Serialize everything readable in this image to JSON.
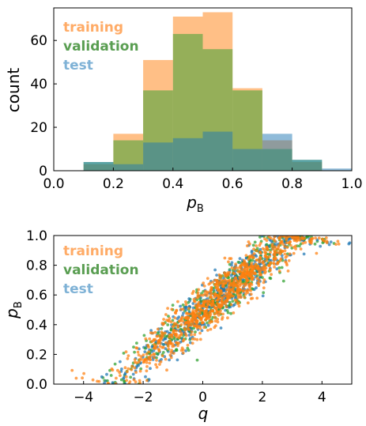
{
  "colors": {
    "training": "#ff7f0e",
    "validation": "#2ca02c",
    "test": "#1f77b4"
  },
  "chart_data": [
    {
      "type": "histogram",
      "xlabel_main": "p",
      "xlabel_sub": "B",
      "ylabel": "count",
      "xlim": [
        0.0,
        1.0
      ],
      "ylim": [
        0,
        75
      ],
      "x_ticks": [
        "0.0",
        "0.2",
        "0.4",
        "0.6",
        "0.8",
        "1.0"
      ],
      "y_ticks": [
        "0",
        "20",
        "40",
        "60"
      ],
      "bin_edges": [
        0.1,
        0.2,
        0.3,
        0.4,
        0.5,
        0.6,
        0.7,
        0.8,
        0.9,
        1.0
      ],
      "legend_position": "top-left",
      "series": [
        {
          "name": "training",
          "values": [
            3,
            17,
            51,
            71,
            73,
            38,
            14,
            4,
            0
          ]
        },
        {
          "name": "validation",
          "values": [
            4,
            14,
            37,
            63,
            56,
            37,
            10,
            5,
            0
          ]
        },
        {
          "name": "test",
          "values": [
            4,
            3,
            13,
            15,
            18,
            10,
            17,
            5,
            1
          ]
        }
      ]
    },
    {
      "type": "scatter",
      "xlabel": "q",
      "ylabel_main": "p",
      "ylabel_sub": "B",
      "xlim": [
        -5,
        5
      ],
      "ylim": [
        0.0,
        1.0
      ],
      "x_ticks": [
        "−4",
        "−2",
        "0",
        "2",
        "4"
      ],
      "y_ticks": [
        "0.0",
        "0.2",
        "0.4",
        "0.6",
        "0.8",
        "1.0"
      ],
      "legend_position": "top-left",
      "relation": "p_B ≈ 0.5 + 0.16·q, clipped to [0, 1]",
      "series": [
        {
          "name": "training"
        },
        {
          "name": "validation"
        },
        {
          "name": "test"
        }
      ]
    }
  ]
}
